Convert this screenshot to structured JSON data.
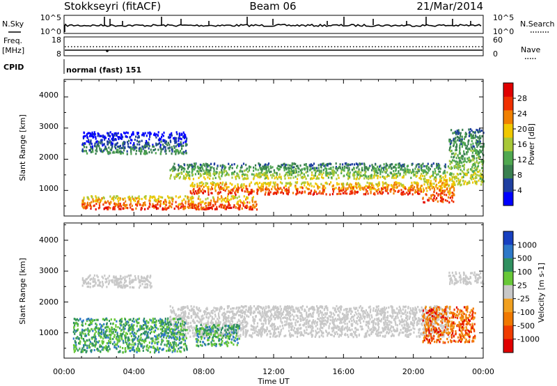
{
  "header": {
    "station": "Stokkseyri (fitACF)",
    "beam": "Beam 06",
    "date": "21/Mar/2014"
  },
  "strip_labels": {
    "nsky": "N.Sky",
    "nsky_ticks": [
      "10^5",
      "10^0"
    ],
    "nsearch": "N.Search",
    "nsearch_ticks": [
      "10^5",
      "10^0"
    ],
    "freq": "Freq.",
    "freq_unit": "[MHz]",
    "freq_ticks": [
      "18",
      "8"
    ],
    "nave": "Nave",
    "nave_ticks": [
      "60",
      "0"
    ],
    "cpid": "CPID",
    "cpid_value": "normal (fast) 151"
  },
  "colors": {
    "power_scale": [
      "#0000ff",
      "#1f3fa0",
      "#3a8050",
      "#50a850",
      "#a8c838",
      "#f0c800",
      "#f08000",
      "#f03000",
      "#e00000"
    ],
    "velocity_scale": [
      "#1840c0",
      "#2e78c8",
      "#309060",
      "#68c838",
      "#c8c8c8",
      "#f0a020",
      "#f07800",
      "#f03c00",
      "#e00000"
    ],
    "background": "#ffffff"
  },
  "chart_data": [
    {
      "type": "heatmap",
      "name": "power",
      "title": "",
      "xlabel": "Time UT",
      "ylabel": "Slant Range [km]",
      "x_ticks": [
        "00:00",
        "04:00",
        "08:00",
        "12:00",
        "16:00",
        "20:00",
        "00:00"
      ],
      "x_range_hours": [
        0,
        24
      ],
      "y_ticks": [
        "1000",
        "2000",
        "3000",
        "4000"
      ],
      "y_range_km": [
        180,
        4560
      ],
      "colorbar": {
        "label": "Power [dB]",
        "ticks": [
          "4",
          "8",
          "12",
          "16",
          "20",
          "24",
          "28"
        ],
        "range": [
          0,
          32
        ]
      },
      "echo_bands": [
        {
          "t": [
            1.0,
            11.0
          ],
          "r": [
            420,
            850
          ],
          "level": "high"
        },
        {
          "t": [
            7.2,
            20.5
          ],
          "r": [
            900,
            1300
          ],
          "level": "high"
        },
        {
          "t": [
            20.5,
            22.3
          ],
          "r": [
            650,
            1400
          ],
          "level": "high"
        },
        {
          "t": [
            6.0,
            22.0
          ],
          "r": [
            1400,
            1900
          ],
          "level": "medium"
        },
        {
          "t": [
            1.0,
            7.0
          ],
          "r": [
            2200,
            2900
          ],
          "level": "low"
        },
        {
          "t": [
            22.0,
            24.0
          ],
          "r": [
            1200,
            3000
          ],
          "level": "medium"
        }
      ]
    },
    {
      "type": "heatmap",
      "name": "velocity",
      "title": "",
      "xlabel": "Time UT",
      "ylabel": "Slant Range [km]",
      "x_ticks": [
        "00:00",
        "04:00",
        "08:00",
        "12:00",
        "16:00",
        "20:00",
        "00:00"
      ],
      "x_range_hours": [
        0,
        24
      ],
      "y_ticks": [
        "1000",
        "2000",
        "3000",
        "4000"
      ],
      "y_range_km": [
        180,
        4560
      ],
      "colorbar": {
        "label": "Velocity [m s-1]",
        "ticks": [
          "1000",
          "500",
          "100",
          "25",
          "-25",
          "-100",
          "-500",
          "-1000"
        ]
      },
      "echo_bands": [
        {
          "t": [
            6.0,
            22.0
          ],
          "r": [
            900,
            1900
          ],
          "class": "ground scatter (grey)"
        },
        {
          "t": [
            1.0,
            5.0
          ],
          "r": [
            2500,
            2900
          ],
          "class": "ground scatter (grey)"
        },
        {
          "t": [
            22.0,
            24.0
          ],
          "r": [
            2600,
            3000
          ],
          "class": "ground scatter (grey)"
        },
        {
          "t": [
            0.5,
            7.0
          ],
          "r": [
            400,
            1500
          ],
          "class": "positive (green/blue)"
        },
        {
          "t": [
            7.5,
            10.0
          ],
          "r": [
            600,
            1300
          ],
          "class": "positive (green/blue)"
        },
        {
          "t": [
            20.5,
            23.5
          ],
          "r": [
            700,
            1900
          ],
          "class": "negative (orange/red)"
        }
      ]
    }
  ]
}
